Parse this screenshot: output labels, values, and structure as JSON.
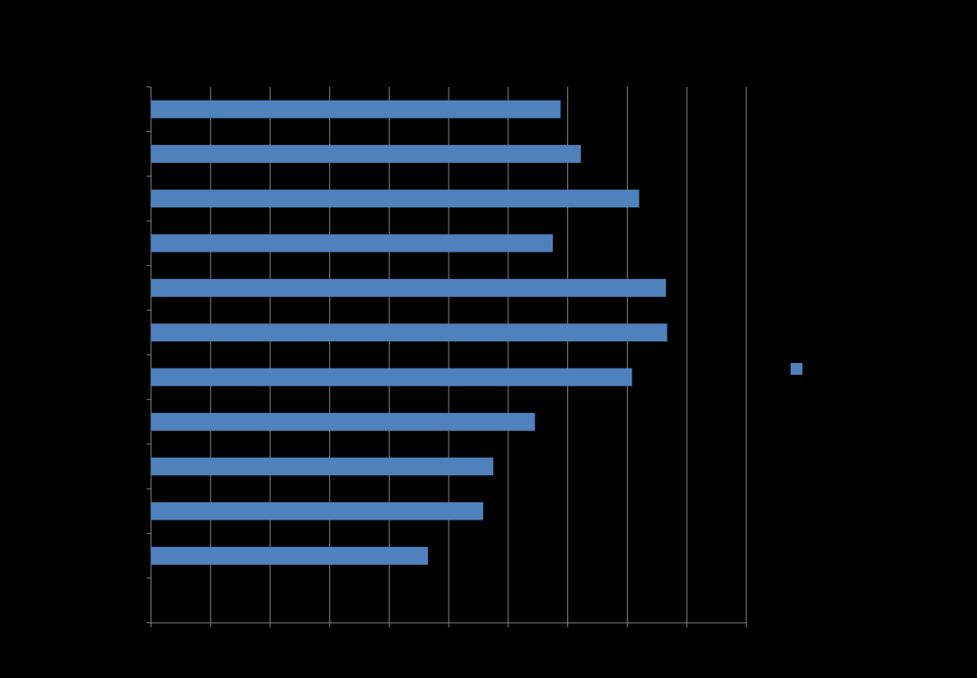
{
  "chart_data": {
    "type": "bar",
    "orientation": "horizontal",
    "title": "",
    "xlabel": "",
    "ylabel": "",
    "categories": [
      "",
      "",
      "",
      "",
      "",
      "",
      "",
      "",
      "",
      "",
      "",
      ""
    ],
    "series": [
      {
        "values": [
          null,
          4.65,
          5.58,
          5.75,
          6.45,
          8.08,
          8.67,
          8.65,
          6.75,
          8.2,
          7.22,
          6.88
        ],
        "color": "#4F81BD"
      }
    ],
    "xlim": [
      0,
      10
    ],
    "x_gridlines": [
      1,
      2,
      3,
      4,
      5,
      6,
      7,
      8,
      9,
      10
    ],
    "grid": true,
    "legend": {
      "position": "right",
      "entries": [
        {
          "label": "",
          "color": "#4F81BD"
        }
      ]
    },
    "colors": {
      "background": "#000000",
      "bar": "#4F81BD",
      "grid": "#808080",
      "axis": "#808080"
    }
  }
}
